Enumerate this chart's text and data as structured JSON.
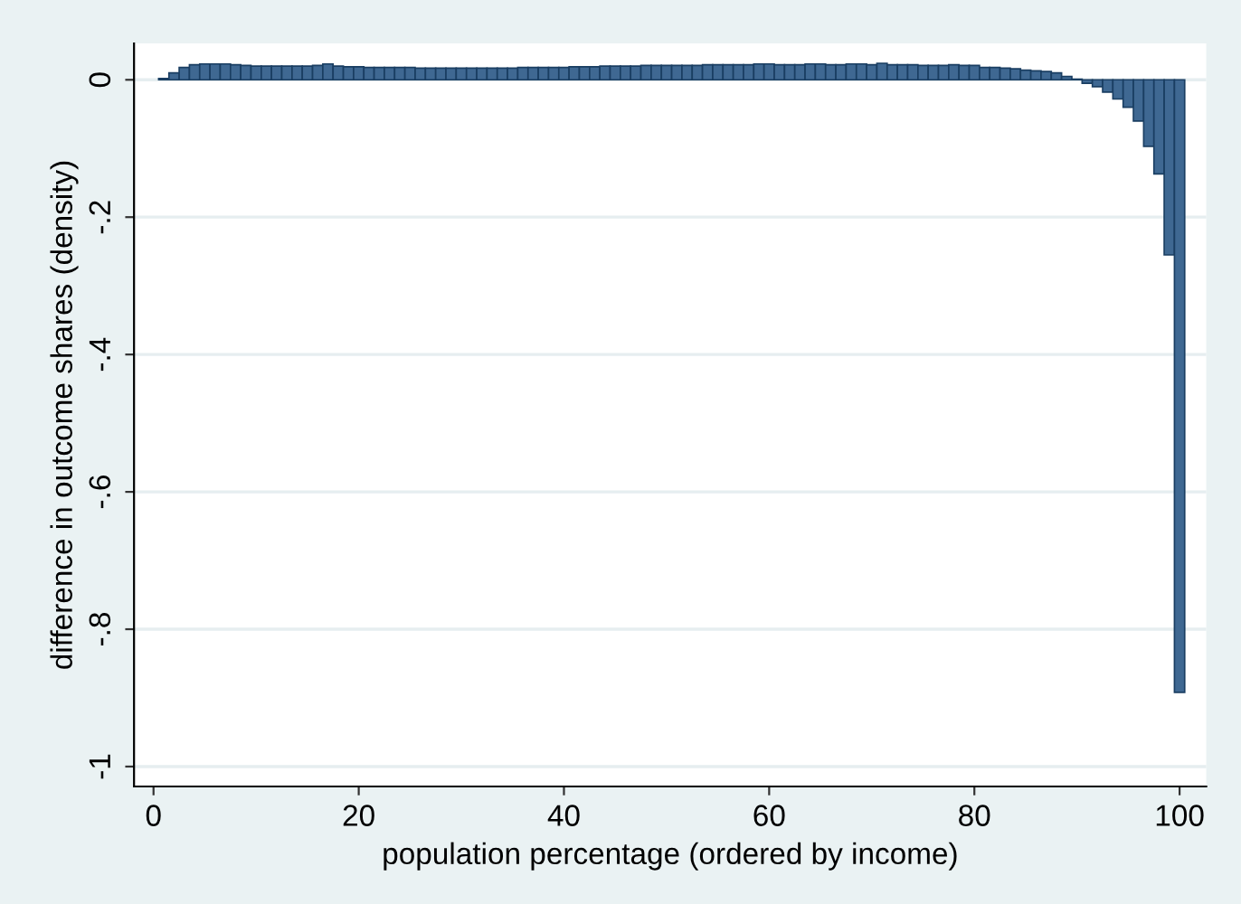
{
  "chart_data": {
    "type": "bar",
    "xlabel": "population percentage (ordered by income)",
    "ylabel": "difference in outcome shares (density)",
    "x": [
      1,
      2,
      3,
      4,
      5,
      6,
      7,
      8,
      9,
      10,
      11,
      12,
      13,
      14,
      15,
      16,
      17,
      18,
      19,
      20,
      21,
      22,
      23,
      24,
      25,
      26,
      27,
      28,
      29,
      30,
      31,
      32,
      33,
      34,
      35,
      36,
      37,
      38,
      39,
      40,
      41,
      42,
      43,
      44,
      45,
      46,
      47,
      48,
      49,
      50,
      51,
      52,
      53,
      54,
      55,
      56,
      57,
      58,
      59,
      60,
      61,
      62,
      63,
      64,
      65,
      66,
      67,
      68,
      69,
      70,
      71,
      72,
      73,
      74,
      75,
      76,
      77,
      78,
      79,
      80,
      81,
      82,
      83,
      84,
      85,
      86,
      87,
      88,
      89,
      90,
      91,
      92,
      93,
      94,
      95,
      96,
      97,
      98,
      99,
      100
    ],
    "values": [
      0.002,
      0.01,
      0.018,
      0.022,
      0.023,
      0.023,
      0.023,
      0.022,
      0.021,
      0.02,
      0.02,
      0.02,
      0.02,
      0.02,
      0.02,
      0.021,
      0.023,
      0.02,
      0.019,
      0.019,
      0.018,
      0.018,
      0.018,
      0.018,
      0.018,
      0.017,
      0.017,
      0.017,
      0.017,
      0.017,
      0.017,
      0.017,
      0.017,
      0.017,
      0.017,
      0.018,
      0.018,
      0.018,
      0.018,
      0.018,
      0.019,
      0.019,
      0.019,
      0.02,
      0.02,
      0.02,
      0.02,
      0.021,
      0.021,
      0.021,
      0.021,
      0.021,
      0.021,
      0.022,
      0.022,
      0.022,
      0.022,
      0.022,
      0.023,
      0.023,
      0.022,
      0.022,
      0.022,
      0.023,
      0.023,
      0.022,
      0.022,
      0.023,
      0.023,
      0.022,
      0.024,
      0.022,
      0.022,
      0.022,
      0.021,
      0.021,
      0.021,
      0.022,
      0.021,
      0.021,
      0.018,
      0.018,
      0.017,
      0.016,
      0.014,
      0.013,
      0.012,
      0.01,
      0.005,
      0.001,
      -0.005,
      -0.01,
      -0.018,
      -0.028,
      -0.04,
      -0.06,
      -0.097,
      -0.137,
      -0.255,
      -0.892
    ],
    "color": "#3f6892",
    "xlim": [
      -1.9,
      102.6
    ],
    "xticks": [
      0,
      20,
      40,
      60,
      80,
      100
    ],
    "ylim": [
      -1.029,
      0.053
    ],
    "yticks": [
      {
        "value": -1,
        "label": "-1"
      },
      {
        "value": -0.8,
        "label": "-.8"
      },
      {
        "value": -0.6,
        "label": "-.6"
      },
      {
        "value": -0.4,
        "label": "-.4"
      },
      {
        "value": -0.2,
        "label": "-.2"
      },
      0
    ],
    "grid": "y"
  }
}
